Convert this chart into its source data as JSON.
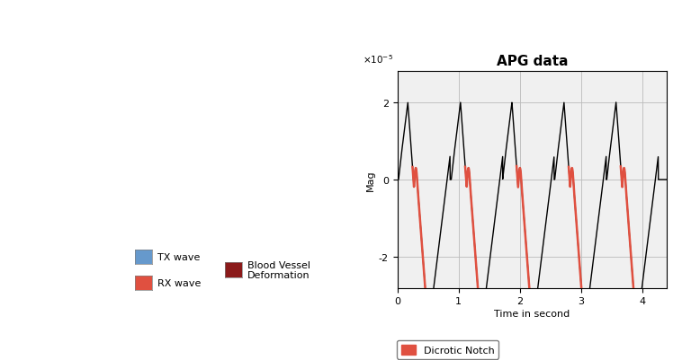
{
  "title": "APG data",
  "xlabel": "Time in second",
  "ylabel": "Mag",
  "ylim": [
    -2.8e-05,
    2.8e-05
  ],
  "xlim": [
    0,
    4.4
  ],
  "yticks": [
    -2e-05,
    0,
    2e-05
  ],
  "ytick_labels": [
    "-2",
    "0",
    "2"
  ],
  "xticks": [
    0,
    1,
    2,
    3,
    4
  ],
  "title_fontsize": 11,
  "label_fontsize": 8,
  "tick_fontsize": 8,
  "line_color_black": "#000000",
  "line_color_red": "#e05040",
  "background_color": "#f0f0f0",
  "grid_color": "#bbbbbb",
  "legend_label": "Dicrotic Notch",
  "legend_color": "#e05040",
  "pulse_starts": [
    0.02,
    0.88,
    1.72,
    2.57,
    3.42
  ],
  "pulse_period": 0.84,
  "amp": 2e-05
}
